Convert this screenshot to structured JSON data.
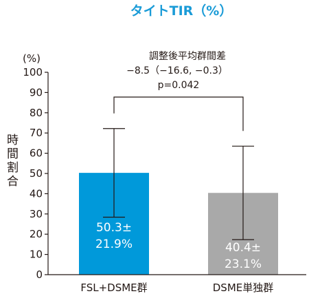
{
  "chart_data": {
    "type": "bar",
    "title": "タイトTIR（%）",
    "ylabel": "時間割合",
    "yunit": "(%)",
    "ylim": [
      0,
      100
    ],
    "yticks": [
      0,
      10,
      20,
      30,
      40,
      50,
      60,
      70,
      80,
      90,
      100
    ],
    "categories": [
      "FSL+DSME群",
      "DSME単独群"
    ],
    "values": [
      50.3,
      40.4
    ],
    "sd": [
      21.9,
      23.1
    ],
    "bar_labels": [
      [
        "50.3±",
        "21.9%"
      ],
      [
        "40.4±",
        "23.1%"
      ]
    ],
    "colors": [
      "#0099da",
      "#a9a9a9"
    ],
    "annotation": {
      "line1": "調整後平均群間差",
      "line2": "−8.5（−16.6, −0.3）",
      "line3": "p=0.042"
    }
  }
}
